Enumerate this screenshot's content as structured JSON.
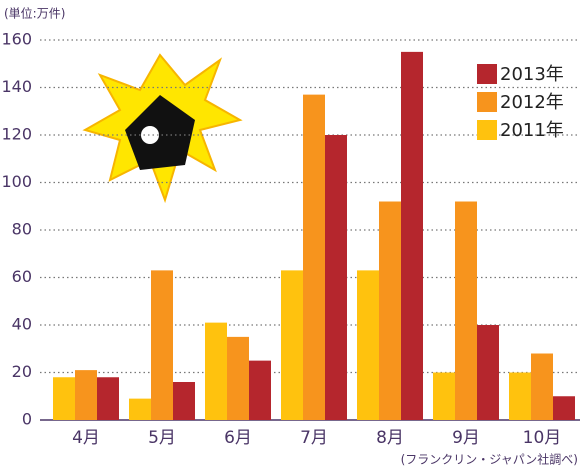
{
  "chart_data": {
    "type": "bar",
    "unit_label": "(単位:万件)",
    "source": "(フランクリン・ジャパン社調べ)",
    "categories": [
      "4月",
      "5月",
      "6月",
      "7月",
      "8月",
      "9月",
      "10月"
    ],
    "series": [
      {
        "name": "2013年",
        "color": "#b5262d",
        "values": [
          18,
          16,
          25,
          120,
          155,
          40,
          10
        ]
      },
      {
        "name": "2012年",
        "color": "#f7941d",
        "values": [
          21,
          63,
          35,
          137,
          92,
          92,
          28
        ]
      },
      {
        "name": "2011年",
        "color": "#ffc20e",
        "values": [
          18,
          9,
          41,
          63,
          63,
          20,
          20
        ]
      }
    ],
    "ylim": [
      0,
      160
    ],
    "yticks": [
      0,
      20,
      40,
      60,
      80,
      100,
      120,
      140,
      160
    ],
    "grid": true,
    "legend": "top-right"
  }
}
